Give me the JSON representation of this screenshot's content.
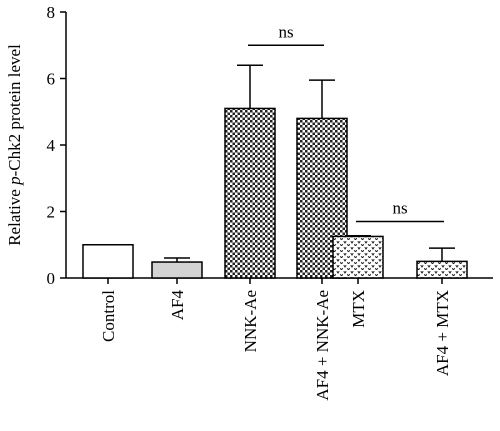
{
  "chart_data": {
    "type": "bar",
    "ylabel_pre": "Relative ",
    "ylabel_italic": "p",
    "ylabel_post": "-Chk2 protein level",
    "ylim": [
      0,
      8
    ],
    "yticks": [
      0,
      2,
      4,
      6,
      8
    ],
    "categories": [
      "Control",
      "AF4",
      "NNK-Ae",
      "AF4 + NNK-Ae",
      "MTX",
      "AF4 + MTX"
    ],
    "values": [
      1.0,
      0.48,
      5.1,
      4.8,
      1.25,
      0.5
    ],
    "errors": [
      0,
      0.12,
      1.3,
      1.15,
      0.02,
      0.4
    ],
    "fills": [
      "white",
      "gray",
      "checker",
      "checker",
      "dots",
      "dots"
    ],
    "significance": [
      {
        "from": 2,
        "to": 3,
        "y": 7.0,
        "label": "ns"
      },
      {
        "from": 4,
        "to": 5,
        "y": 1.7,
        "label": "ns"
      }
    ],
    "colors": {
      "gray": "#d3d3d3",
      "ink": "#000000",
      "white": "#ffffff"
    }
  }
}
